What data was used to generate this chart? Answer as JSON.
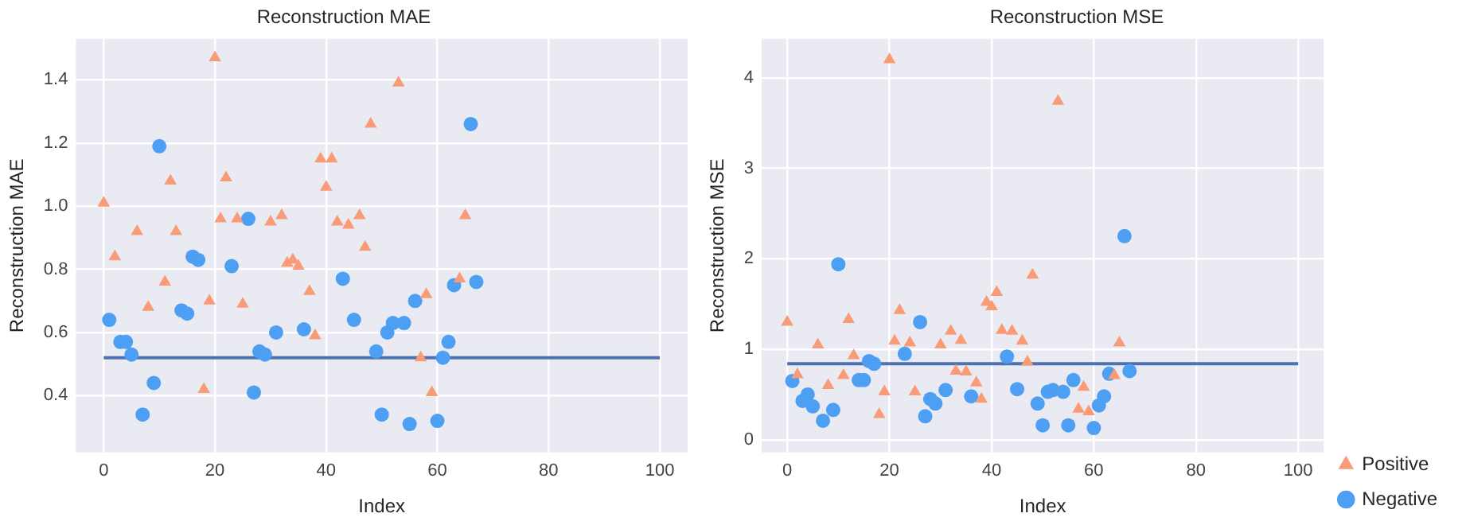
{
  "chart_data": [
    {
      "type": "scatter",
      "title": "Reconstruction MAE",
      "xlabel": "Index",
      "ylabel": "Reconstruction MAE",
      "xlim": [
        -5,
        105
      ],
      "xticks": [
        0,
        20,
        40,
        60,
        80,
        100
      ],
      "ylim": [
        0.22,
        1.53
      ],
      "yticks": [
        0.4,
        0.6,
        0.8,
        {
          "value": 1,
          "label": "1.0"
        },
        1.2,
        1.4
      ],
      "grid": true,
      "legend": false,
      "series": [
        {
          "color": "#f99b76",
          "marker": "triangle",
          "x": [
            0,
            2,
            6,
            8,
            11,
            12,
            13,
            18,
            19,
            20,
            21,
            22,
            24,
            25,
            30,
            32,
            33,
            34,
            35,
            37,
            38,
            39,
            40,
            41,
            42,
            44,
            46,
            47,
            48,
            53,
            57,
            58,
            59,
            64,
            65
          ],
          "values": [
            1.01,
            0.84,
            0.92,
            0.68,
            0.76,
            1.08,
            0.92,
            0.42,
            0.7,
            1.47,
            0.96,
            1.09,
            0.96,
            0.69,
            0.95,
            0.97,
            0.82,
            0.83,
            0.81,
            0.73,
            0.59,
            1.15,
            1.06,
            1.15,
            0.95,
            0.94,
            0.97,
            0.87,
            1.26,
            1.39,
            0.52,
            0.72,
            0.41,
            0.77,
            0.97
          ]
        },
        {
          "color": "#4c9ff2",
          "marker": "circle",
          "x": [
            1,
            3,
            4,
            5,
            7,
            9,
            10,
            14,
            15,
            16,
            17,
            23,
            26,
            27,
            28,
            29,
            31,
            36,
            43,
            45,
            49,
            50,
            51,
            52,
            54,
            55,
            56,
            60,
            61,
            62,
            63,
            66,
            67
          ],
          "values": [
            0.64,
            0.57,
            0.57,
            0.53,
            0.34,
            0.44,
            1.19,
            0.67,
            0.66,
            0.84,
            0.83,
            0.81,
            0.96,
            0.41,
            0.54,
            0.53,
            0.6,
            0.61,
            0.77,
            0.64,
            0.54,
            0.34,
            0.6,
            0.63,
            0.63,
            0.31,
            0.7,
            0.32,
            0.52,
            0.57,
            0.75,
            1.26,
            0.76
          ]
        },
        {
          "type": "line",
          "color": "#4c72b0",
          "line_style": "solid",
          "marker": "none",
          "x": [
            0,
            100
          ],
          "values": [
            0.52,
            0.52
          ]
        }
      ]
    },
    {
      "type": "scatter",
      "title": "Reconstruction MSE",
      "xlabel": "Index",
      "ylabel": "Reconstruction MSE",
      "xlim": [
        -5,
        105
      ],
      "xticks": [
        0,
        20,
        40,
        60,
        80,
        100
      ],
      "ylim": [
        -0.14,
        4.43
      ],
      "yticks": [
        0,
        1,
        2,
        3,
        4
      ],
      "grid": true,
      "legend": "bottom right",
      "series": [
        {
          "name": "Positive",
          "color": "#f99b76",
          "marker": "triangle",
          "x": [
            0,
            2,
            6,
            8,
            11,
            12,
            13,
            18,
            19,
            20,
            21,
            22,
            24,
            25,
            30,
            32,
            33,
            34,
            35,
            37,
            38,
            39,
            40,
            41,
            42,
            44,
            46,
            47,
            48,
            53,
            57,
            58,
            59,
            64,
            65
          ],
          "values": [
            1.3,
            0.72,
            1.05,
            0.6,
            0.71,
            1.33,
            0.93,
            0.28,
            0.53,
            4.2,
            1.09,
            1.43,
            1.07,
            0.53,
            1.05,
            1.2,
            0.76,
            1.1,
            0.75,
            0.63,
            0.45,
            1.52,
            1.47,
            1.63,
            1.21,
            1.2,
            1.09,
            0.86,
            1.82,
            3.74,
            0.34,
            0.58,
            0.31,
            0.71,
            1.07
          ]
        },
        {
          "name": "Negative",
          "color": "#4c9ff2",
          "marker": "circle",
          "x": [
            1,
            3,
            4,
            5,
            7,
            9,
            10,
            14,
            15,
            16,
            17,
            23,
            26,
            27,
            28,
            29,
            31,
            36,
            43,
            45,
            49,
            50,
            51,
            52,
            54,
            55,
            56,
            60,
            61,
            62,
            63,
            66,
            67
          ],
          "values": [
            0.65,
            0.43,
            0.5,
            0.37,
            0.21,
            0.33,
            1.94,
            0.66,
            0.66,
            0.87,
            0.84,
            0.95,
            1.3,
            0.26,
            0.45,
            0.4,
            0.55,
            0.48,
            0.92,
            0.56,
            0.4,
            0.16,
            0.53,
            0.55,
            0.53,
            0.16,
            0.66,
            0.13,
            0.38,
            0.48,
            0.73,
            2.25,
            0.76
          ]
        },
        {
          "type": "line",
          "color": "#4c72b0",
          "line_style": "solid",
          "marker": "none",
          "x": [
            0,
            100
          ],
          "values": [
            0.84,
            0.84
          ]
        }
      ]
    }
  ]
}
